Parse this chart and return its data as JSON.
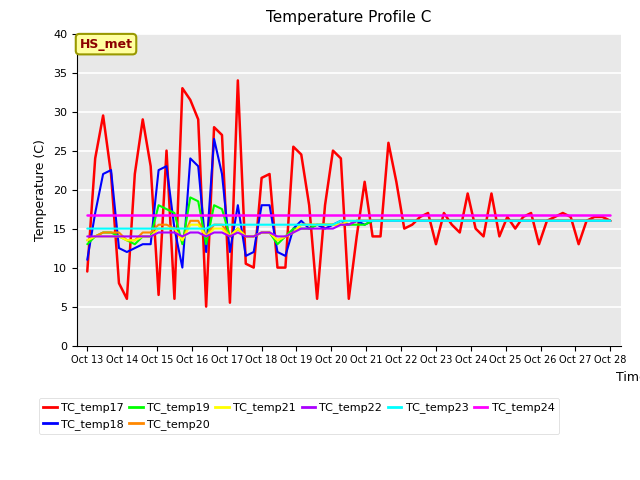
{
  "title": "Temperature Profile C",
  "xlabel": "Time",
  "ylabel": "Temperature (C)",
  "ylim": [
    0,
    40
  ],
  "xtick_labels": [
    "Oct 13",
    "Oct 14",
    "Oct 15",
    "Oct 16",
    "Oct 17",
    "Oct 18",
    "Oct 19",
    "Oct 20",
    "Oct 21",
    "Oct 22",
    "Oct 23",
    "Oct 24",
    "Oct 25",
    "Oct 26",
    "Oct 27",
    "Oct 28"
  ],
  "annotation_text": "HS_met",
  "annotation_color": "#8B0000",
  "annotation_bg": "#FFFFA0",
  "annotation_border": "#999900",
  "bg_color": "#E8E8E8",
  "series": {
    "TC_temp17": {
      "color": "#FF0000",
      "lw": 1.8,
      "values": [
        9.5,
        24,
        29.5,
        22,
        8,
        6,
        22,
        29,
        23,
        6.5,
        25,
        6,
        33,
        31.5,
        29,
        5,
        28,
        27,
        5.5,
        34,
        10.5,
        10,
        21.5,
        22,
        10,
        10,
        25.5,
        24.5,
        18,
        6,
        18,
        25,
        24,
        6,
        14,
        21,
        14,
        14,
        26,
        21,
        15,
        15.5,
        16.5,
        17,
        13,
        17,
        15.5,
        14.5,
        19.5,
        15,
        14,
        19.5,
        14,
        16.5,
        15,
        16.5,
        17,
        13,
        16,
        16.5,
        17,
        16.5,
        13,
        16,
        16.5,
        16.5,
        16
      ]
    },
    "TC_temp18": {
      "color": "#0000FF",
      "lw": 1.5,
      "values": [
        11,
        17,
        22,
        22.5,
        12.5,
        12,
        12.5,
        13,
        13,
        22.5,
        23,
        15,
        10,
        24,
        23,
        12,
        26.5,
        22,
        12,
        18,
        11.5,
        12,
        18,
        18,
        12,
        11.5,
        15,
        16,
        15,
        15.5,
        15,
        15.5,
        16,
        15.5,
        16,
        15.5,
        16,
        16,
        16,
        16,
        16,
        16,
        16,
        16,
        16,
        16,
        16,
        16,
        16,
        16,
        16,
        16,
        16,
        16,
        16,
        16,
        16,
        16,
        16,
        16,
        16,
        16,
        16,
        16,
        16,
        16,
        16
      ]
    },
    "TC_temp19": {
      "color": "#00FF00",
      "lw": 1.5,
      "values": [
        13,
        14,
        14.5,
        14.5,
        14,
        13.5,
        13,
        14,
        14,
        18,
        17.5,
        17,
        13,
        19,
        18.5,
        13,
        18,
        17.5,
        14,
        15,
        14,
        14,
        14.5,
        14.5,
        13,
        14,
        15,
        15,
        15,
        15.5,
        15.5,
        15.5,
        15.5,
        15.5,
        15.5,
        15.5,
        16,
        16,
        16,
        16,
        16,
        16,
        16,
        16,
        16,
        16,
        16,
        16,
        16,
        16,
        16,
        16,
        16,
        16,
        16,
        16,
        16,
        16,
        16,
        16,
        16,
        16,
        16,
        16,
        16,
        16,
        16
      ]
    },
    "TC_temp20": {
      "color": "#FF8800",
      "lw": 1.5,
      "values": [
        13.5,
        14,
        14.5,
        14.5,
        14.5,
        13.5,
        13.5,
        14.5,
        14.5,
        15.5,
        15.5,
        15,
        13.5,
        16,
        16,
        14,
        15.5,
        15.5,
        14,
        15,
        14,
        14,
        14.5,
        14.5,
        13.5,
        14,
        14.5,
        15.5,
        15.5,
        15.5,
        15.5,
        15.5,
        15.5,
        15.5,
        16,
        16,
        16,
        16,
        16,
        16,
        16,
        16,
        16,
        16,
        16,
        16,
        16,
        16,
        16,
        16,
        16,
        16,
        16,
        16,
        16,
        16,
        16,
        16,
        16,
        16,
        16,
        16,
        16,
        16,
        16,
        16,
        16
      ]
    },
    "TC_temp21": {
      "color": "#FFFF00",
      "lw": 1.5,
      "values": [
        13.5,
        14,
        14,
        14,
        14,
        13.5,
        13.5,
        14,
        14,
        15,
        15,
        15,
        13.5,
        15.5,
        15.5,
        14,
        15,
        15,
        14,
        15,
        14,
        14,
        14.5,
        14.5,
        13.5,
        14,
        14.5,
        15.5,
        15.5,
        15.5,
        15.5,
        15.5,
        15.5,
        16,
        16,
        16,
        16,
        16,
        16,
        16,
        16,
        16,
        16,
        16,
        16,
        16,
        16,
        16,
        16,
        16,
        16,
        16,
        16,
        16,
        16,
        16,
        16,
        16,
        16,
        16,
        16,
        16,
        16,
        16,
        16,
        16,
        16
      ]
    },
    "TC_temp22": {
      "color": "#AA00FF",
      "lw": 1.5,
      "values": [
        14,
        14,
        14,
        14,
        14,
        14,
        14,
        14,
        14,
        14.5,
        14.5,
        14.5,
        14,
        14.5,
        14.5,
        14,
        14.5,
        14.5,
        14,
        14.5,
        14,
        14,
        14.5,
        14.5,
        14,
        14,
        14.5,
        15,
        15,
        15,
        15,
        15,
        15.5,
        15.5,
        16,
        16,
        16,
        16,
        16,
        16,
        16,
        16,
        16,
        16,
        16,
        16,
        16,
        16,
        16,
        16,
        16,
        16,
        16,
        16,
        16,
        16,
        16,
        16,
        16,
        16,
        16,
        16,
        16,
        16,
        16,
        16,
        16
      ]
    },
    "TC_temp23": {
      "color": "#00FFFF",
      "lw": 1.5,
      "values": [
        15,
        15,
        15,
        15,
        15,
        15,
        15,
        15,
        15,
        15,
        15,
        15,
        15,
        15,
        15,
        15,
        15.5,
        15.5,
        15.5,
        15.5,
        15.5,
        15.5,
        15.5,
        15.5,
        15.5,
        15.5,
        15.5,
        15.5,
        15.5,
        15.5,
        15.5,
        15.5,
        16,
        16,
        16,
        16,
        16,
        16,
        16,
        16,
        16,
        16,
        16,
        16,
        16,
        16,
        16,
        16,
        16,
        16,
        16,
        16,
        16,
        16,
        16,
        16,
        16,
        16,
        16,
        16,
        16,
        16,
        16,
        16,
        16,
        16,
        16
      ]
    },
    "TC_temp24": {
      "color": "#FF00FF",
      "lw": 1.8,
      "values": [
        16.7,
        16.7,
        16.7,
        16.7,
        16.7,
        16.7,
        16.7,
        16.7,
        16.7,
        16.7,
        16.7,
        16.7,
        16.7,
        16.7,
        16.7,
        16.7,
        16.7,
        16.7,
        16.7,
        16.7,
        16.7,
        16.7,
        16.7,
        16.7,
        16.7,
        16.7,
        16.7,
        16.7,
        16.7,
        16.7,
        16.7,
        16.7,
        16.7,
        16.7,
        16.7,
        16.7,
        16.7,
        16.7,
        16.7,
        16.7,
        16.7,
        16.7,
        16.7,
        16.7,
        16.7,
        16.7,
        16.7,
        16.7,
        16.7,
        16.7,
        16.7,
        16.7,
        16.7,
        16.7,
        16.7,
        16.7,
        16.7,
        16.7,
        16.7,
        16.7,
        16.7,
        16.7,
        16.7,
        16.7,
        16.7,
        16.7,
        16.7
      ]
    }
  },
  "legend_order": [
    "TC_temp17",
    "TC_temp18",
    "TC_temp19",
    "TC_temp20",
    "TC_temp21",
    "TC_temp22",
    "TC_temp23",
    "TC_temp24"
  ]
}
